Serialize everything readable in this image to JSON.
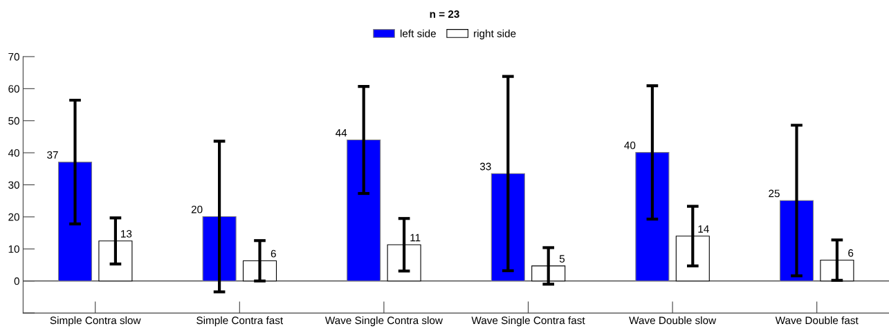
{
  "chart_data": {
    "type": "bar",
    "title": "n = 23",
    "categories": [
      "Simple Contra slow",
      "Simple Contra fast",
      "Wave Single Contra slow",
      "Wave Single Contra fast",
      "Wave Double slow",
      "Wave Double fast"
    ],
    "series": [
      {
        "name": "left side",
        "color": "#0000ff",
        "values": [
          37.1,
          20.1,
          44.0,
          33.5,
          40.1,
          25.1
        ],
        "errors": [
          19.3,
          23.5,
          16.7,
          30.3,
          20.8,
          23.5
        ],
        "value_labels": [
          "37",
          "20",
          "44",
          "33",
          "40",
          "25"
        ]
      },
      {
        "name": "right side",
        "color": "#ffffff",
        "values": [
          12.5,
          6.3,
          11.3,
          4.7,
          14.0,
          6.5
        ],
        "errors": [
          7.2,
          6.3,
          8.2,
          5.7,
          9.3,
          6.3
        ],
        "value_labels": [
          "13",
          "6",
          "11",
          "5",
          "14",
          "6"
        ]
      }
    ],
    "ylim": [
      -10,
      70
    ],
    "yticks": [
      {
        "value": -10,
        "label": null
      },
      0,
      10,
      20,
      30,
      40,
      50,
      60,
      70
    ],
    "ref_lines": [
      {
        "axis": "y",
        "value": 0,
        "color": "#000000"
      }
    ],
    "grid": false,
    "legend": "top"
  }
}
